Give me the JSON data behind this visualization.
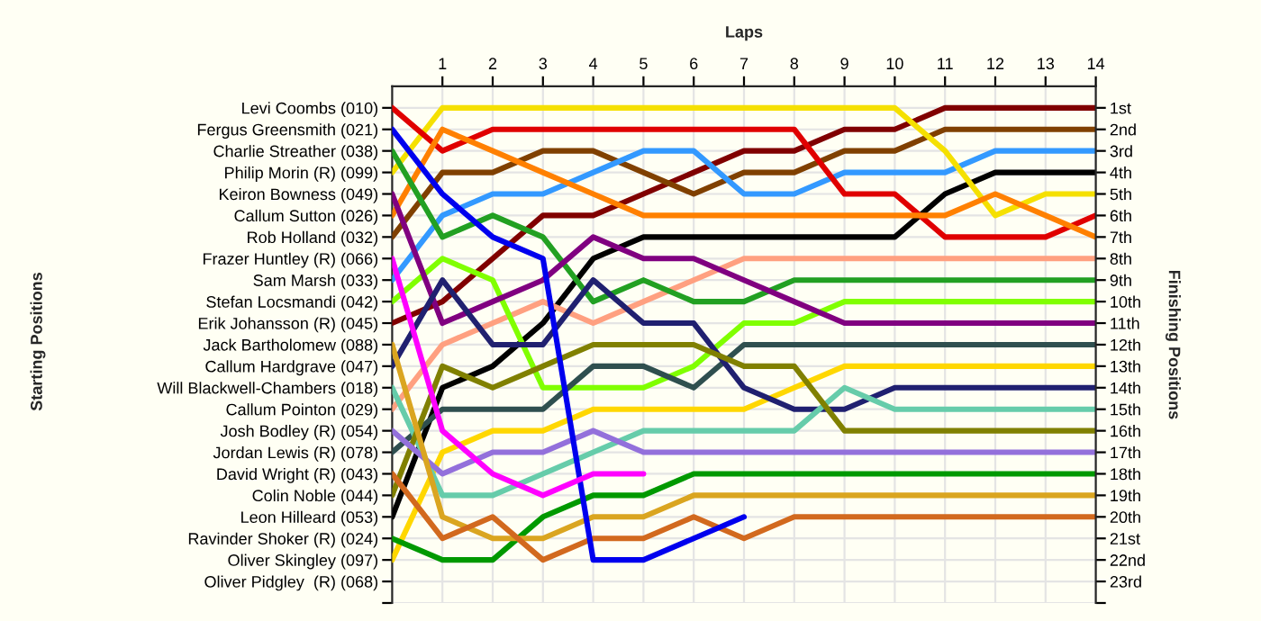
{
  "chart_data": {
    "type": "line",
    "xlabel": "Laps",
    "ylabel": "Finishing Positions",
    "annotations": [
      "Starting Positions"
    ],
    "x": [
      0,
      1,
      2,
      3,
      4,
      5,
      6,
      7,
      8,
      9,
      10,
      11,
      12,
      13,
      14
    ],
    "xlim": [
      0,
      14
    ],
    "xticks": [
      1,
      2,
      3,
      4,
      5,
      6,
      7,
      8,
      9,
      10,
      11,
      12,
      13,
      14
    ],
    "ylim": [
      24,
      0
    ],
    "y_categories": [
      "Levi Coombs (010)",
      "Fergus Greensmith (021)",
      "Charlie Streather (038)",
      "Philip Morin (R) (099)",
      "Keiron Bowness (049)",
      "Callum Sutton (026)",
      "Rob Holland (032)",
      "Frazer Huntley (R) (066)",
      "Sam Marsh (033)",
      "Stefan Locsmandi (042)",
      "Erik Johansson (R) (045)",
      "Jack Bartholomew (088)",
      "Callum Hardgrave (047)",
      "Will Blackwell-Chambers (018)",
      "Callum Pointon (029)",
      "Josh Bodley (R) (054)",
      "Jordan Lewis (R) (078)",
      "David Wright (R) (043)",
      "Colin Noble (044)",
      "Leon Hilleard (053)",
      "Ravinder Shoker (R) (024)",
      "Oliver Skingley (097)",
      "Oliver Pidgley  (R) (068)",
      null
    ],
    "yticks": [
      {
        "value": 1,
        "label": "1st"
      },
      {
        "value": 2,
        "label": "2nd"
      },
      {
        "value": 3,
        "label": "3rd"
      },
      {
        "value": 4,
        "label": "4th"
      },
      {
        "value": 5,
        "label": "5th"
      },
      {
        "value": 6,
        "label": "6th"
      },
      {
        "value": 7,
        "label": "7th"
      },
      {
        "value": 8,
        "label": "8th"
      },
      {
        "value": 9,
        "label": "9th"
      },
      {
        "value": 10,
        "label": "10th"
      },
      {
        "value": 11,
        "label": "11th"
      },
      {
        "value": 12,
        "label": "12th"
      },
      {
        "value": 13,
        "label": "13th"
      },
      {
        "value": 14,
        "label": "14th"
      },
      {
        "value": 15,
        "label": "15th"
      },
      {
        "value": 16,
        "label": "16th"
      },
      {
        "value": 17,
        "label": "17th"
      },
      {
        "value": 18,
        "label": "18th"
      },
      {
        "value": 19,
        "label": "19th"
      },
      {
        "value": 20,
        "label": "20th"
      },
      {
        "value": 21,
        "label": "21st"
      },
      {
        "value": 22,
        "label": "22nd"
      },
      {
        "value": 23,
        "label": "23rd"
      },
      {
        "value": 24,
        "label": null
      }
    ],
    "grid": true,
    "legend": false,
    "marker": "none",
    "line_style": "solid",
    "series": [
      {
        "color": "#800000",
        "values": [
          11,
          10,
          8,
          6,
          6,
          5,
          4,
          3,
          3,
          2,
          2,
          1,
          1,
          1,
          1
        ]
      },
      {
        "color": "#804000",
        "values": [
          7,
          4,
          4,
          3,
          3,
          4,
          5,
          4,
          4,
          3,
          3,
          2,
          2,
          2,
          2
        ]
      },
      {
        "color": "#3399ff",
        "values": [
          9,
          6,
          5,
          5,
          4,
          3,
          3,
          5,
          5,
          4,
          4,
          4,
          3,
          3,
          3
        ]
      },
      {
        "color": "#000000",
        "values": [
          20,
          14,
          13,
          11,
          8,
          7,
          7,
          7,
          7,
          7,
          7,
          5,
          4,
          4,
          4
        ]
      },
      {
        "color": "#f5e000",
        "values": [
          4,
          1,
          1,
          1,
          1,
          1,
          1,
          1,
          1,
          1,
          1,
          3,
          6,
          5,
          5
        ]
      },
      {
        "color": "#e00000",
        "values": [
          1,
          3,
          2,
          2,
          2,
          2,
          2,
          2,
          2,
          5,
          5,
          7,
          7,
          7,
          6
        ]
      },
      {
        "color": "#ff8000",
        "values": [
          6,
          2,
          3,
          4,
          5,
          6,
          6,
          6,
          6,
          6,
          6,
          6,
          5,
          6,
          7
        ]
      },
      {
        "color": "#ffa080",
        "values": [
          15,
          12,
          11,
          10,
          11,
          10,
          9,
          8,
          8,
          8,
          8,
          8,
          8,
          8,
          8
        ]
      },
      {
        "color": "#22a022",
        "values": [
          3,
          7,
          6,
          7,
          10,
          9,
          10,
          10,
          9,
          9,
          9,
          9,
          9,
          9,
          9
        ]
      },
      {
        "color": "#80ff00",
        "values": [
          10,
          8,
          9,
          14,
          14,
          14,
          13,
          11,
          11,
          10,
          10,
          10,
          10,
          10,
          10
        ]
      },
      {
        "color": "#800080",
        "values": [
          5,
          11,
          10,
          9,
          7,
          8,
          8,
          9,
          10,
          11,
          11,
          11,
          11,
          11,
          11
        ]
      },
      {
        "color": "#2f4f4f",
        "values": [
          17,
          15,
          15,
          15,
          13,
          13,
          14,
          12,
          12,
          12,
          12,
          12,
          12,
          12,
          12
        ]
      },
      {
        "color": "#ffd700",
        "values": [
          22,
          17,
          16,
          16,
          15,
          15,
          15,
          15,
          14,
          13,
          13,
          13,
          13,
          13,
          13
        ]
      },
      {
        "color": "#202070",
        "values": [
          13,
          9,
          12,
          12,
          9,
          11,
          11,
          14,
          15,
          15,
          14,
          14,
          14,
          14,
          14
        ]
      },
      {
        "color": "#66ccaa",
        "values": [
          14,
          19,
          19,
          18,
          17,
          16,
          16,
          16,
          16,
          14,
          15,
          15,
          15,
          15,
          15
        ]
      },
      {
        "color": "#808000",
        "values": [
          19,
          13,
          14,
          13,
          12,
          12,
          12,
          13,
          13,
          16,
          16,
          16,
          16,
          16,
          16
        ]
      },
      {
        "color": "#9370db",
        "values": [
          16,
          18,
          17,
          17,
          16,
          17,
          17,
          17,
          17,
          17,
          17,
          17,
          17,
          17,
          17
        ]
      },
      {
        "color": "#009900",
        "values": [
          21,
          22,
          22,
          20,
          19,
          19,
          18,
          18,
          18,
          18,
          18,
          18,
          18,
          18,
          18
        ]
      },
      {
        "color": "#daa520",
        "values": [
          12,
          20,
          21,
          21,
          20,
          20,
          19,
          19,
          19,
          19,
          19,
          19,
          19,
          19,
          19
        ]
      },
      {
        "color": "#d2691e",
        "values": [
          18,
          21,
          20,
          22,
          21,
          21,
          20,
          21,
          20,
          20,
          20,
          20,
          20,
          20,
          20
        ]
      },
      {
        "color": "#0000ee",
        "values": [
          2,
          5,
          7,
          8,
          22,
          22,
          21,
          20,
          null,
          null,
          null,
          null,
          null,
          null,
          null
        ]
      },
      {
        "color": "#ff00ff",
        "values": [
          8,
          16,
          18,
          19,
          18,
          18,
          null,
          null,
          null,
          null,
          null,
          null,
          null,
          null,
          null
        ]
      }
    ]
  }
}
